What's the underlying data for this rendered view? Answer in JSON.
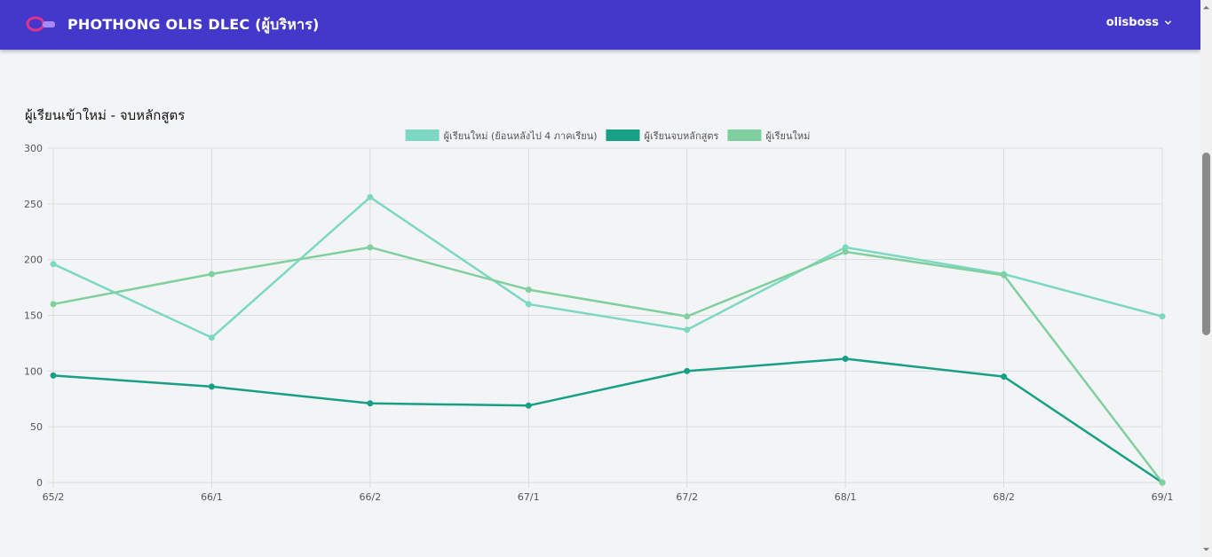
{
  "header": {
    "title": "PHOTHONG OLIS DLEC (ผู้บริหาร)",
    "user": "olisboss",
    "bg_color": "#4338ca"
  },
  "chart_section": {
    "title": "ผู้เรียนเข้าใหม่ - จบหลักสูตร"
  },
  "chart_data": {
    "type": "line",
    "categories": [
      "65/2",
      "66/1",
      "66/2",
      "67/1",
      "67/2",
      "68/1",
      "68/2",
      "69/1"
    ],
    "ylim": [
      0,
      300
    ],
    "yticks": [
      0,
      50,
      100,
      150,
      200,
      250,
      300
    ],
    "grid": true,
    "legend_position": "top",
    "series": [
      {
        "name": "ผู้เรียนใหม่ (ย้อนหลังไป 4 ภาคเรียน)",
        "color": "#7dd8c3",
        "values": [
          196,
          130,
          256,
          160,
          137,
          211,
          187,
          149
        ]
      },
      {
        "name": "ผู้เรียนจบหลักสูตร",
        "color": "#17a085",
        "values": [
          96,
          86,
          71,
          69,
          100,
          111,
          95,
          0
        ]
      },
      {
        "name": "ผู้เรียนใหม่",
        "color": "#80cf9e",
        "values": [
          160,
          187,
          211,
          173,
          149,
          207,
          186,
          0
        ]
      }
    ]
  }
}
